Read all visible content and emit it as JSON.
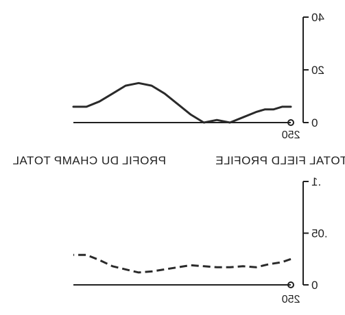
{
  "chart_data": [
    {
      "type": "line",
      "y_ticks": [
        "0",
        "20",
        "40"
      ],
      "ylim": [
        0,
        40
      ],
      "x_end_label": "250",
      "xlim": [
        0,
        250
      ],
      "series": [
        {
          "style": "solid",
          "x": [
            0,
            10,
            20,
            30,
            40,
            55,
            70,
            85,
            100,
            115,
            130,
            145,
            160,
            175,
            190,
            205,
            220,
            235,
            245,
            250
          ],
          "y": [
            6,
            6,
            5,
            5,
            4,
            2,
            0,
            1,
            0,
            3,
            7,
            11,
            14,
            15,
            14,
            11,
            8,
            6,
            6,
            6
          ]
        }
      ]
    },
    {
      "type": "line",
      "y_ticks": [
        "0",
        ".05",
        ".1"
      ],
      "ylim": [
        0,
        0.1
      ],
      "x_end_label": "250",
      "xlim": [
        0,
        250
      ],
      "series": [
        {
          "style": "dashed",
          "x": [
            0,
            10,
            25,
            40,
            55,
            70,
            85,
            100,
            115,
            130,
            145,
            160,
            175,
            190,
            205,
            220,
            235,
            250
          ],
          "y": [
            0.025,
            0.022,
            0.02,
            0.017,
            0.018,
            0.017,
            0.017,
            0.018,
            0.019,
            0.017,
            0.015,
            0.013,
            0.012,
            0.015,
            0.018,
            0.024,
            0.029,
            0.029
          ]
        }
      ]
    }
  ],
  "labels": {
    "left": "TOTAL FIELD PROFILE",
    "right": "PROFIL DU CHAMP TOTAL"
  }
}
